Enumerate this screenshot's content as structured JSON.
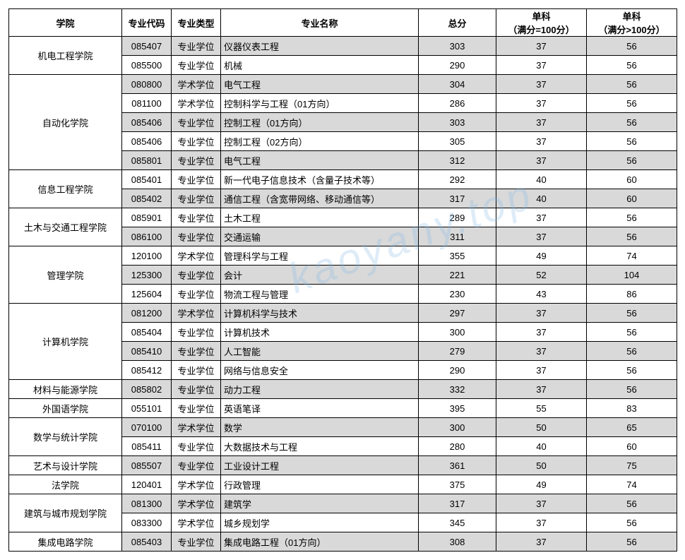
{
  "headers": {
    "college": "学院",
    "code": "专业代码",
    "type": "专业类型",
    "name": "专业名称",
    "total": "总分",
    "s1": "单科\n（满分=100分）",
    "s2": "单科\n（满分>100分）"
  },
  "alt_row_bg": "#d9d9d9",
  "row_bg": "#ffffff",
  "watermark": "kaoyany.top",
  "colleges": [
    {
      "name": "机电工程学院",
      "rows": [
        {
          "code": "085407",
          "type": "专业学位",
          "major": "仪器仪表工程",
          "total": 303,
          "s1": 37,
          "s2": 56,
          "shade": true
        },
        {
          "code": "085500",
          "type": "专业学位",
          "major": "机械",
          "total": 290,
          "s1": 37,
          "s2": 56,
          "shade": false
        }
      ]
    },
    {
      "name": "自动化学院",
      "rows": [
        {
          "code": "080800",
          "type": "学术学位",
          "major": "电气工程",
          "total": 304,
          "s1": 37,
          "s2": 56,
          "shade": true
        },
        {
          "code": "081100",
          "type": "学术学位",
          "major": "控制科学与工程（01方向）",
          "total": 286,
          "s1": 37,
          "s2": 56,
          "shade": false
        },
        {
          "code": "085406",
          "type": "专业学位",
          "major": "控制工程（01方向）",
          "total": 303,
          "s1": 37,
          "s2": 56,
          "shade": true
        },
        {
          "code": "085406",
          "type": "专业学位",
          "major": "控制工程（02方向）",
          "total": 305,
          "s1": 37,
          "s2": 56,
          "shade": false
        },
        {
          "code": "085801",
          "type": "专业学位",
          "major": "电气工程",
          "total": 312,
          "s1": 37,
          "s2": 56,
          "shade": true
        }
      ]
    },
    {
      "name": "信息工程学院",
      "rows": [
        {
          "code": "085401",
          "type": "专业学位",
          "major": "新一代电子信息技术（含量子技术等）",
          "total": 292,
          "s1": 40,
          "s2": 60,
          "shade": false
        },
        {
          "code": "085402",
          "type": "专业学位",
          "major": "通信工程（含宽带网络、移动通信等）",
          "total": 317,
          "s1": 40,
          "s2": 60,
          "shade": true
        }
      ]
    },
    {
      "name": "土木与交通工程学院",
      "rows": [
        {
          "code": "085901",
          "type": "专业学位",
          "major": "土木工程",
          "total": 289,
          "s1": 37,
          "s2": 56,
          "shade": false
        },
        {
          "code": "086100",
          "type": "专业学位",
          "major": "交通运输",
          "total": 311,
          "s1": 37,
          "s2": 56,
          "shade": true
        }
      ]
    },
    {
      "name": "管理学院",
      "rows": [
        {
          "code": "120100",
          "type": "学术学位",
          "major": "管理科学与工程",
          "total": 355,
          "s1": 49,
          "s2": 74,
          "shade": false
        },
        {
          "code": "125300",
          "type": "专业学位",
          "major": "会计",
          "total": 221,
          "s1": 52,
          "s2": 104,
          "shade": true
        },
        {
          "code": "125604",
          "type": "专业学位",
          "major": "物流工程与管理",
          "total": 230,
          "s1": 43,
          "s2": 86,
          "shade": false
        }
      ]
    },
    {
      "name": "计算机学院",
      "rows": [
        {
          "code": "081200",
          "type": "学术学位",
          "major": "计算机科学与技术",
          "total": 297,
          "s1": 37,
          "s2": 56,
          "shade": true
        },
        {
          "code": "085404",
          "type": "专业学位",
          "major": "计算机技术",
          "total": 300,
          "s1": 37,
          "s2": 56,
          "shade": false
        },
        {
          "code": "085410",
          "type": "专业学位",
          "major": "人工智能",
          "total": 279,
          "s1": 37,
          "s2": 56,
          "shade": true
        },
        {
          "code": "085412",
          "type": "专业学位",
          "major": "网络与信息安全",
          "total": 290,
          "s1": 37,
          "s2": 56,
          "shade": false
        }
      ]
    },
    {
      "name": "材料与能源学院",
      "rows": [
        {
          "code": "085802",
          "type": "专业学位",
          "major": "动力工程",
          "total": 332,
          "s1": 37,
          "s2": 56,
          "shade": true
        }
      ]
    },
    {
      "name": "外国语学院",
      "rows": [
        {
          "code": "055101",
          "type": "专业学位",
          "major": "英语笔译",
          "total": 395,
          "s1": 55,
          "s2": 83,
          "shade": false
        }
      ]
    },
    {
      "name": "数学与统计学院",
      "rows": [
        {
          "code": "070100",
          "type": "学术学位",
          "major": "数学",
          "total": 300,
          "s1": 50,
          "s2": 65,
          "shade": true
        },
        {
          "code": "085411",
          "type": "专业学位",
          "major": "大数据技术与工程",
          "total": 280,
          "s1": 40,
          "s2": 60,
          "shade": false
        }
      ]
    },
    {
      "name": "艺术与设计学院",
      "rows": [
        {
          "code": "085507",
          "type": "专业学位",
          "major": "工业设计工程",
          "total": 361,
          "s1": 50,
          "s2": 75,
          "shade": true
        }
      ]
    },
    {
      "name": "法学院",
      "rows": [
        {
          "code": "120401",
          "type": "学术学位",
          "major": "行政管理",
          "total": 375,
          "s1": 49,
          "s2": 74,
          "shade": false
        }
      ]
    },
    {
      "name": "建筑与城市规划学院",
      "rows": [
        {
          "code": "081300",
          "type": "学术学位",
          "major": "建筑学",
          "total": 317,
          "s1": 37,
          "s2": 56,
          "shade": true
        },
        {
          "code": "083300",
          "type": "学术学位",
          "major": "城乡规划学",
          "total": 345,
          "s1": 37,
          "s2": 56,
          "shade": false
        }
      ]
    },
    {
      "name": "集成电路学院",
      "rows": [
        {
          "code": "085403",
          "type": "专业学位",
          "major": "集成电路工程（01方向）",
          "total": 308,
          "s1": 37,
          "s2": 56,
          "shade": true
        }
      ]
    }
  ]
}
